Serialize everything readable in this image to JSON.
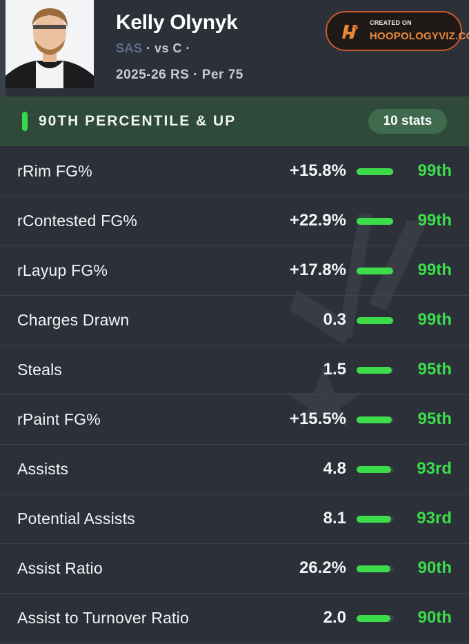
{
  "player": {
    "name": "Kelly Olynyk",
    "team": "SAS",
    "team_suffix": " · vs C ·",
    "season": "2025-26 RS · Per 75"
  },
  "badge": {
    "created_label": "CREATED ON",
    "site": "HOOPOLOGYVIZ.COM"
  },
  "section": {
    "title": "90TH PERCENTILE & UP",
    "count": "10 stats"
  },
  "stats": [
    {
      "label": "rRim FG%",
      "value": "+15.8%",
      "percentile": "99th",
      "fill": 0.99
    },
    {
      "label": "rContested FG%",
      "value": "+22.9%",
      "percentile": "99th",
      "fill": 0.99
    },
    {
      "label": "rLayup FG%",
      "value": "+17.8%",
      "percentile": "99th",
      "fill": 0.99
    },
    {
      "label": "Charges Drawn",
      "value": "0.3",
      "percentile": "99th",
      "fill": 0.99
    },
    {
      "label": "Steals",
      "value": "1.5",
      "percentile": "95th",
      "fill": 0.95
    },
    {
      "label": "rPaint FG%",
      "value": "+15.5%",
      "percentile": "95th",
      "fill": 0.95
    },
    {
      "label": "Assists",
      "value": "4.8",
      "percentile": "93rd",
      "fill": 0.93
    },
    {
      "label": "Potential Assists",
      "value": "8.1",
      "percentile": "93rd",
      "fill": 0.93
    },
    {
      "label": "Assist Ratio",
      "value": "26.2%",
      "percentile": "90th",
      "fill": 0.9
    },
    {
      "label": "Assist to  Turnover Ratio",
      "value": "2.0",
      "percentile": "90th",
      "fill": 0.9
    }
  ],
  "colors": {
    "accent_green": "#3ddc4a",
    "section_bg": "#2f4a3a",
    "badge_orange": "#e8893a"
  }
}
